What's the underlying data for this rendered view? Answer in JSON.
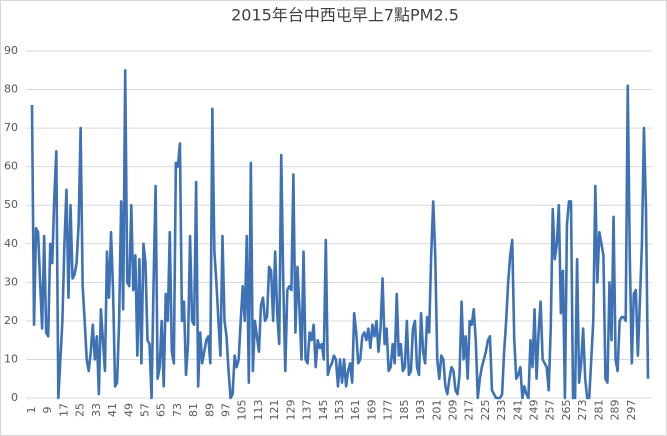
{
  "chart_data": {
    "type": "line",
    "title": "2015年台中西屯早上7點PM2.5",
    "categories": [
      "1",
      null,
      null,
      null,
      null,
      null,
      null,
      null,
      "9",
      null,
      null,
      null,
      null,
      null,
      null,
      null,
      "17",
      null,
      null,
      null,
      null,
      null,
      null,
      null,
      "25",
      null,
      null,
      null,
      null,
      null,
      null,
      null,
      "33",
      null,
      null,
      null,
      null,
      null,
      null,
      null,
      "41",
      null,
      null,
      null,
      null,
      null,
      null,
      null,
      "49",
      null,
      null,
      null,
      null,
      null,
      null,
      null,
      "57",
      null,
      null,
      null,
      null,
      null,
      null,
      null,
      "65",
      null,
      null,
      null,
      null,
      null,
      null,
      null,
      "73",
      null,
      null,
      null,
      null,
      null,
      null,
      null,
      "81",
      null,
      null,
      null,
      null,
      null,
      null,
      null,
      "89",
      null,
      null,
      null,
      null,
      null,
      null,
      null,
      "97",
      null,
      null,
      null,
      null,
      null,
      null,
      null,
      "105",
      null,
      null,
      null,
      null,
      null,
      null,
      null,
      "113",
      null,
      null,
      null,
      null,
      null,
      null,
      null,
      "121",
      null,
      null,
      null,
      null,
      null,
      null,
      null,
      "129",
      null,
      null,
      null,
      null,
      null,
      null,
      null,
      "137",
      null,
      null,
      null,
      null,
      null,
      null,
      null,
      "145",
      null,
      null,
      null,
      null,
      null,
      null,
      null,
      "153",
      null,
      null,
      null,
      null,
      null,
      null,
      null,
      "161",
      null,
      null,
      null,
      null,
      null,
      null,
      null,
      "169",
      null,
      null,
      null,
      null,
      null,
      null,
      null,
      "177",
      null,
      null,
      null,
      null,
      null,
      null,
      null,
      "185",
      null,
      null,
      null,
      null,
      null,
      null,
      null,
      "193",
      null,
      null,
      null,
      null,
      null,
      null,
      null,
      "201",
      null,
      null,
      null,
      null,
      null,
      null,
      null,
      "209",
      null,
      null,
      null,
      null,
      null,
      null,
      null,
      "217",
      null,
      null,
      null,
      null,
      null,
      null,
      null,
      "225",
      null,
      null,
      null,
      null,
      null,
      null,
      null,
      "233",
      null,
      null,
      null,
      null,
      null,
      null,
      null,
      "241",
      null,
      null,
      null,
      null,
      null,
      null,
      null,
      "249",
      null,
      null,
      null,
      null,
      null,
      null,
      null,
      "257",
      null,
      null,
      null,
      null,
      null,
      null,
      null,
      "265",
      null,
      null,
      null,
      null,
      null,
      null,
      null,
      "273",
      null,
      null,
      null,
      null,
      null,
      null,
      null,
      "281",
      null,
      null,
      null,
      null,
      null,
      null,
      null,
      "289",
      null,
      null,
      null,
      null,
      null,
      null,
      null,
      "297",
      null,
      null,
      null,
      null,
      null,
      null,
      null,
      null
    ],
    "values": [
      76,
      19,
      44,
      43,
      30,
      18,
      42,
      17,
      16,
      40,
      35,
      52,
      64,
      0,
      10,
      20,
      40,
      54,
      26,
      50,
      31,
      32,
      35,
      45,
      70,
      29,
      20,
      10,
      7,
      12,
      19,
      10,
      16,
      1,
      23,
      15,
      7,
      38,
      26,
      43,
      28,
      3,
      4,
      20,
      51,
      23,
      85,
      30,
      29,
      50,
      28,
      37,
      11,
      36,
      9,
      40,
      35,
      15,
      14,
      0,
      30,
      55,
      5,
      8,
      20,
      3,
      27,
      20,
      43,
      12,
      9,
      61,
      60,
      66,
      20,
      25,
      6,
      14,
      42,
      20,
      19,
      56,
      3,
      17,
      9,
      12,
      15,
      16,
      9,
      75,
      38,
      30,
      20,
      11,
      42,
      20,
      16,
      7,
      0,
      1,
      11,
      8,
      10,
      20,
      29,
      20,
      42,
      4,
      61,
      7,
      20,
      16,
      12,
      24,
      26,
      20,
      21,
      34,
      33,
      20,
      38,
      22,
      14,
      63,
      30,
      7,
      28,
      29,
      28,
      58,
      17,
      34,
      23,
      10,
      38,
      10,
      9,
      17,
      15,
      19,
      8,
      15,
      13,
      14,
      10,
      41,
      6,
      8,
      9,
      11,
      10,
      3,
      10,
      4,
      10,
      3,
      7,
      9,
      4,
      22,
      17,
      9,
      10,
      16,
      17,
      15,
      18,
      13,
      19,
      16,
      20,
      12,
      18,
      31,
      14,
      18,
      7,
      8,
      14,
      9,
      27,
      11,
      14,
      7,
      8,
      20,
      6,
      7,
      18,
      20,
      8,
      6,
      22,
      12,
      9,
      21,
      17,
      37,
      51,
      37,
      10,
      5,
      11,
      10,
      3,
      1,
      5,
      8,
      7,
      2,
      1,
      6,
      25,
      10,
      16,
      5,
      20,
      19,
      23,
      15,
      0,
      5,
      8,
      10,
      12,
      15,
      16,
      2,
      1,
      0,
      0,
      0,
      1,
      12,
      20,
      30,
      37,
      41,
      15,
      5,
      6,
      8,
      0,
      3,
      1,
      0,
      15,
      8,
      23,
      5,
      17,
      25,
      10,
      9,
      8,
      2,
      18,
      49,
      36,
      40,
      50,
      22,
      33,
      0,
      45,
      51,
      51,
      0,
      0,
      36,
      4,
      9,
      18,
      5,
      0,
      0,
      10,
      20,
      55,
      30,
      43,
      40,
      37,
      5,
      4,
      30,
      15,
      47,
      10,
      7,
      20,
      21,
      21,
      20,
      81,
      37,
      9,
      27,
      28,
      11,
      25,
      40,
      70,
      49,
      5
    ],
    "color": "#3f72b5",
    "ylim": [
      0,
      90
    ],
    "yticks": [
      0,
      10,
      20,
      30,
      40,
      50,
      60,
      70,
      80,
      90
    ],
    "grid": true
  }
}
